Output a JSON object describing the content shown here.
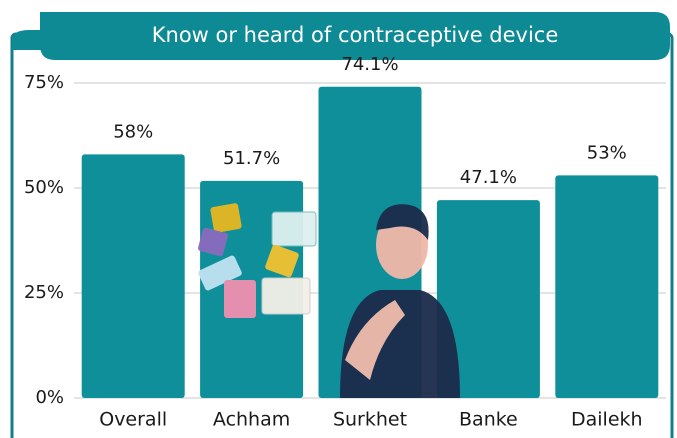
{
  "chart_data": {
    "type": "bar",
    "title": "Know or heard of contraceptive device",
    "categories": [
      "Overall",
      "Achham",
      "Surkhet",
      "Banke",
      "Dailekh"
    ],
    "values": [
      58,
      51.7,
      74.1,
      47.1,
      53
    ],
    "value_labels": [
      "58%",
      "51.7%",
      "74.1%",
      "47.1%",
      "53%"
    ],
    "color": "#0f8f9a",
    "ylim": [
      0,
      75
    ],
    "yticks": [
      {
        "value": 0,
        "label": "0%"
      },
      {
        "value": 25,
        "label": "25%"
      },
      {
        "value": 50,
        "label": "50%"
      },
      {
        "value": 75,
        "label": "75%"
      }
    ],
    "grid": true
  }
}
